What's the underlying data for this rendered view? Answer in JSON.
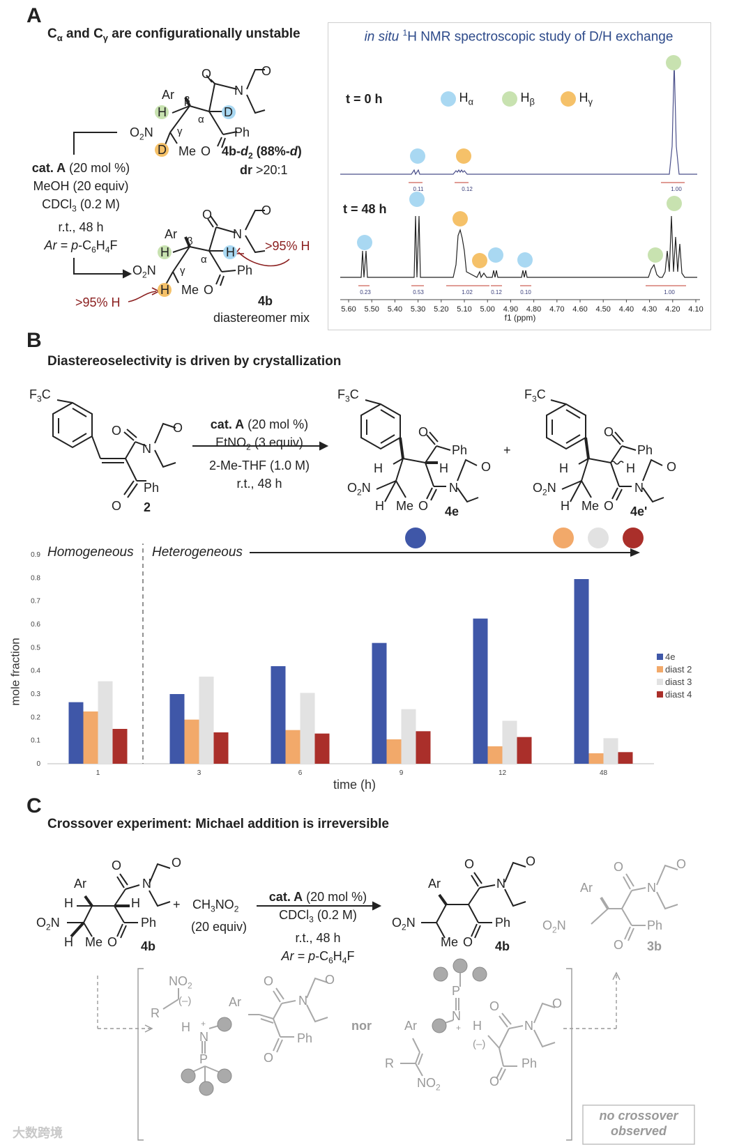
{
  "figure": {
    "panels": {
      "a": {
        "letter": "A",
        "title_pre": "C",
        "title_sub1": "α",
        "title_mid": " and C",
        "title_sub2": "γ",
        "title_post": " are configurationally unstable",
        "compound_label_pre": "4b-",
        "compound_label_d": "d",
        "compound_label_2": "2",
        "compound_label_post": " (88%-",
        "compound_label_d2": "d",
        "compound_label_close": ")",
        "dr_label": "dr",
        "dr_value": ">20:1",
        "conditions": {
          "cat_bold": "cat. A",
          "cat_rest": " (20 mol %)",
          "line2": "MeOH (20 equiv)",
          "line3_pre": "CDCl",
          "line3_sub": "3",
          "line3_post": " (0.2 M)",
          "line4": "r.t., 48 h",
          "line5_pre": "Ar = ",
          "line5_p": "p",
          "line5_post": "-C",
          "line5_sub1": "6",
          "line5_h": "H",
          "line5_sub2": "4",
          "line5_f": "F"
        },
        "product_label": "4b",
        "product_sub": "diastereomer mix",
        "h_callout": ">95% H",
        "atoms": {
          "ar": "Ar",
          "beta": "β",
          "alpha": "α",
          "gamma": "γ",
          "o": "O",
          "n": "N",
          "ph": "Ph",
          "me": "Me",
          "h": "H",
          "d": "D",
          "o2n_pre": "O",
          "o2n_sub": "2",
          "o2n_post": "N"
        }
      },
      "nmr": {
        "title_italic": "in situ",
        "title_sup": "1",
        "title_rest": "H NMR spectroscopic study of D/H exchange",
        "trace_top_label": "t = 0 h",
        "trace_bottom_label": "t = 48 h",
        "legend": [
          {
            "sym": "H",
            "sub": "α",
            "color": "#a9d8f2"
          },
          {
            "sym": "H",
            "sub": "β",
            "color": "#c8e2b0"
          },
          {
            "sym": "H",
            "sub": "γ",
            "color": "#f5c169"
          }
        ],
        "integrals_top": [
          "0.11",
          "0.12",
          "1.00"
        ],
        "integrals_bottom": [
          "0.23",
          "0.53",
          "1.02",
          "0.12",
          "0.10",
          "1.00"
        ],
        "axis_ticks": [
          "5.60",
          "5.50",
          "5.40",
          "5.30",
          "5.20",
          "5.10",
          "5.00",
          "4.90",
          "4.80",
          "4.70",
          "4.60",
          "4.50",
          "4.40",
          "4.30",
          "4.20",
          "4.10"
        ],
        "axis_label": "f1 (ppm)"
      },
      "b": {
        "letter": "B",
        "title": "Diastereoselectivity is driven by crystallization",
        "conditions": {
          "cat_bold": "cat. A",
          "cat_rest": " (20 mol %)",
          "line2_pre": "EtNO",
          "line2_sub": "2",
          "line2_post": " (3 equiv)",
          "line3": "2-Me-THF (1.0 M)",
          "line4": "r.t., 48 h"
        },
        "reactant_label": "2",
        "product1_label": "4e",
        "product2_label": "4e'",
        "plus": "+",
        "atoms": {
          "f3c_pre": "F",
          "f3c_sub": "3",
          "f3c_post": "C",
          "o": "O",
          "n": "N",
          "ph": "Ph",
          "h": "H",
          "me": "Me",
          "o2n_pre": "O",
          "o2n_sub": "2",
          "o2n_post": "N"
        },
        "regime_left": "Homogeneous",
        "regime_right": "Heterogeneous"
      },
      "c": {
        "letter": "C",
        "title": "Crossover experiment: Michael addition is irreversible",
        "reagent_pre": "CH",
        "reagent_sub1": "3",
        "reagent_mid": "NO",
        "reagent_sub2": "2",
        "reagent_equiv": "(20 equiv)",
        "plus": "+",
        "conditions": {
          "cat_bold": "cat. A",
          "cat_rest": " (20 mol %)",
          "line2_pre": "CDCl",
          "line2_sub": "3",
          "line2_post": " (0.2 M)",
          "line3": "r.t., 48 h",
          "line4_pre": "Ar = ",
          "line4_p": "p",
          "line4_post": "-C",
          "line4_sub1": "6",
          "line4_h": "H",
          "line4_sub2": "4",
          "line4_f": "F"
        },
        "reactant_label": "4b",
        "product_label": "4b",
        "gray_product_label": "3b",
        "nor": "nor",
        "no_crossover_line1": "no crossover",
        "no_crossover_line2": "observed",
        "atoms": {
          "ar": "Ar",
          "o": "O",
          "n": "N",
          "ph": "Ph",
          "h": "H",
          "me": "Me",
          "r": "R",
          "p": "P",
          "o2n_pre": "O",
          "o2n_sub": "2",
          "o2n_post": "N",
          "no2_pre": "NO",
          "no2_sub": "2",
          "minus": "(–)",
          "plus_charge": "+"
        }
      }
    },
    "watermark": "大数跨境"
  },
  "chart_data": {
    "type": "bar",
    "title": "",
    "xlabel": "time (h)",
    "ylabel": "mole fraction",
    "categories": [
      "1",
      "3",
      "6",
      "9",
      "12",
      "48"
    ],
    "ylim": [
      0,
      0.9
    ],
    "yticks": [
      "0",
      "0.1",
      "0.2",
      "0.3",
      "0.4",
      "0.5",
      "0.6",
      "0.7",
      "0.8",
      "0.9"
    ],
    "series": [
      {
        "name": "4e",
        "color": "#3f57a8",
        "values": [
          0.265,
          0.3,
          0.42,
          0.52,
          0.625,
          0.795
        ]
      },
      {
        "name": "diast 2",
        "color": "#f2a96a",
        "values": [
          0.225,
          0.19,
          0.145,
          0.105,
          0.075,
          0.045
        ]
      },
      {
        "name": "diast 3",
        "color": "#e2e2e2",
        "values": [
          0.355,
          0.375,
          0.305,
          0.235,
          0.185,
          0.11
        ]
      },
      {
        "name": "diast 4",
        "color": "#aa2f2a",
        "values": [
          0.15,
          0.135,
          0.13,
          0.14,
          0.115,
          0.05
        ]
      }
    ],
    "legend_position": "right",
    "divider_after_category": "1",
    "grid": false
  }
}
